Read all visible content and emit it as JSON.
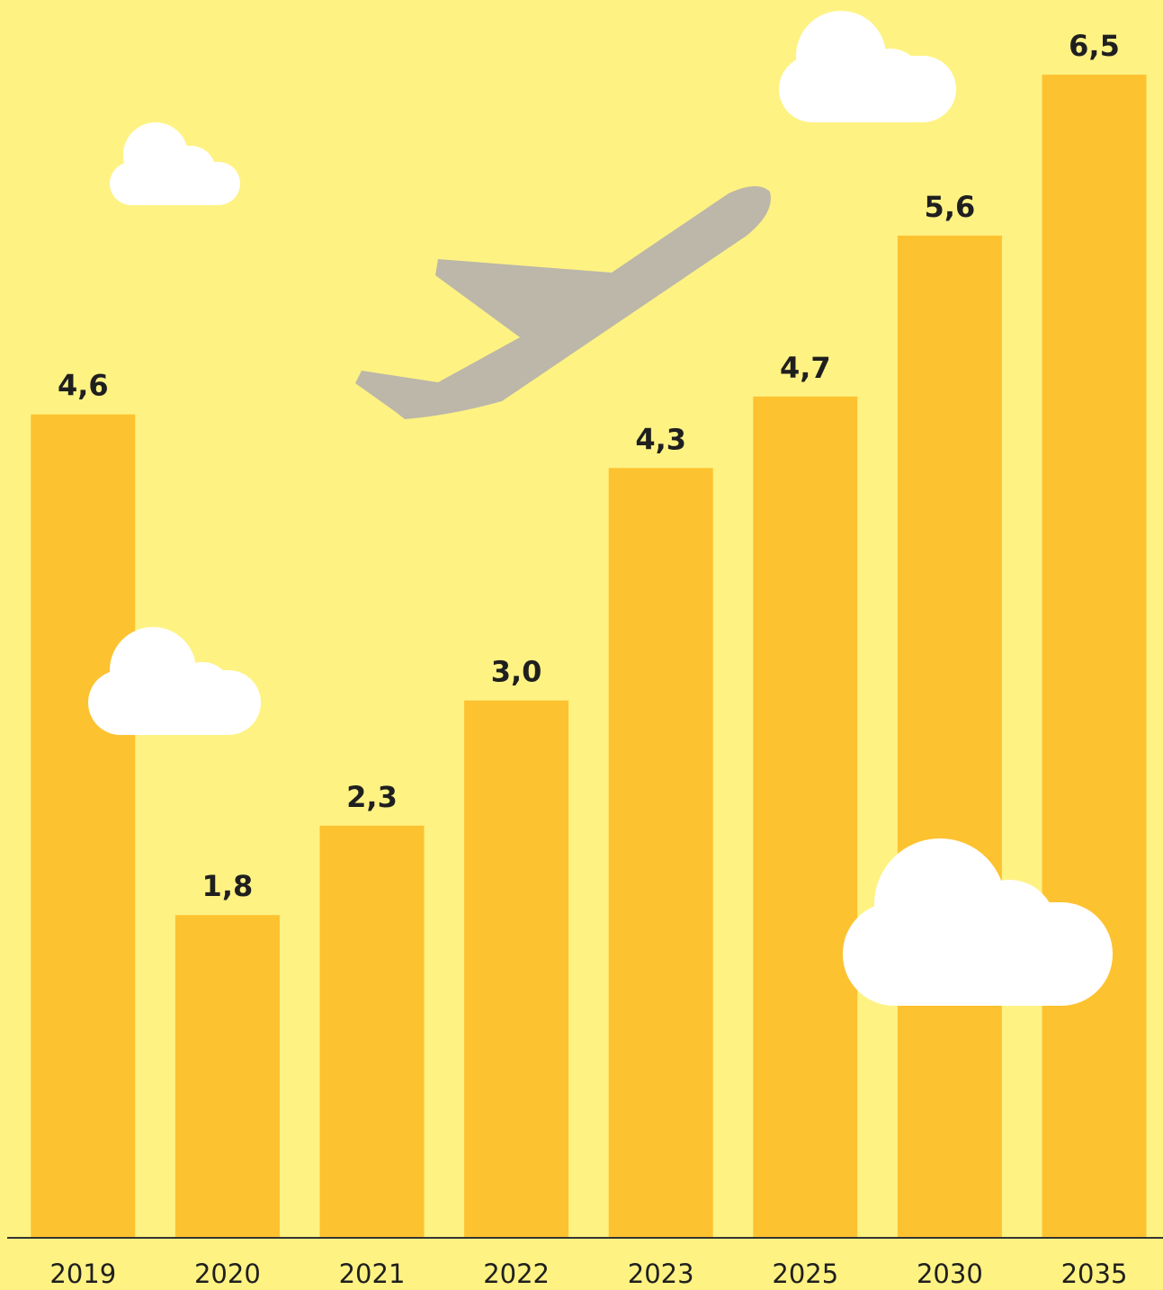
{
  "chart_data": {
    "type": "bar",
    "categories": [
      "2019",
      "2020",
      "2021",
      "2022",
      "2023",
      "2025",
      "2030",
      "2035"
    ],
    "values": [
      4.6,
      1.8,
      2.3,
      3.0,
      4.3,
      4.7,
      5.6,
      6.5
    ],
    "value_labels": [
      "4,6",
      "1,8",
      "2,3",
      "3,0",
      "4,3",
      "4,7",
      "5,6",
      "6,5"
    ],
    "color": "#fdc230"
  }
}
